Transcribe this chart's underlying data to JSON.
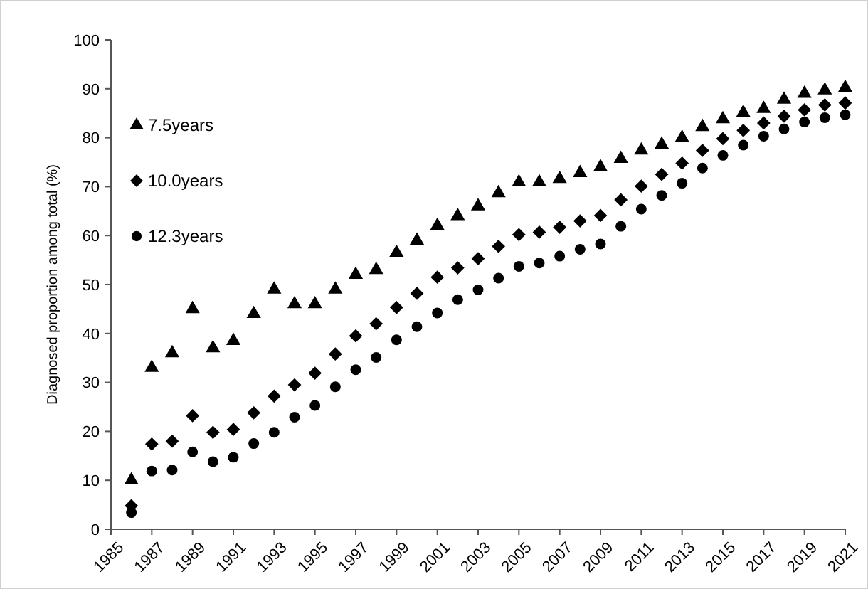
{
  "chart_data": {
    "type": "scatter",
    "ylabel": "Diagnosed proportion among total (%)",
    "x": [
      1986,
      1987,
      1988,
      1989,
      1990,
      1991,
      1992,
      1993,
      1994,
      1995,
      1996,
      1997,
      1998,
      1999,
      2000,
      2001,
      2002,
      2003,
      2004,
      2005,
      2006,
      2007,
      2008,
      2009,
      2010,
      2011,
      2012,
      2013,
      2014,
      2015,
      2016,
      2017,
      2018,
      2019,
      2020,
      2021
    ],
    "series": [
      {
        "name": "7.5years",
        "color": "#000000",
        "marker": "triangle",
        "values": [
          10,
          33,
          36,
          45,
          37,
          38.5,
          44,
          49,
          46,
          46,
          49,
          52,
          53,
          56.5,
          59,
          62,
          64,
          66,
          68.7,
          70.9,
          70.9,
          71.6,
          72.8,
          74,
          75.7,
          77.4,
          78.6,
          80,
          82.2,
          83.8,
          85.1,
          85.9,
          87.8,
          89,
          89.7,
          90.2
        ]
      },
      {
        "name": "10.0years",
        "color": "#000000",
        "marker": "diamond",
        "values": [
          4.8,
          17.4,
          18,
          23.2,
          19.8,
          20.4,
          23.8,
          27.2,
          29.5,
          31.9,
          35.8,
          39.5,
          42,
          45.3,
          48.2,
          51.5,
          53.4,
          55.3,
          57.8,
          60.2,
          60.7,
          61.7,
          63,
          64.1,
          67.3,
          70.1,
          72.5,
          74.8,
          77.4,
          79.8,
          81.5,
          83,
          84.4,
          85.7,
          86.7,
          87.1
        ]
      },
      {
        "name": "12.3years",
        "color": "#000000",
        "marker": "circle",
        "values": [
          3.4,
          11.9,
          12.1,
          15.8,
          13.8,
          14.7,
          17.5,
          19.8,
          22.9,
          25.3,
          29.1,
          32.6,
          35.1,
          38.7,
          41.4,
          44.2,
          46.9,
          48.9,
          51.3,
          53.7,
          54.4,
          55.8,
          57.2,
          58.3,
          61.9,
          65.4,
          68.2,
          70.7,
          73.8,
          76.4,
          78.5,
          80.3,
          81.8,
          83.2,
          84.1,
          84.7
        ]
      }
    ],
    "xlim": [
      1985,
      2021
    ],
    "xticks": [
      1985,
      1987,
      1989,
      1991,
      1993,
      1995,
      1997,
      1999,
      2001,
      2003,
      2005,
      2007,
      2009,
      2011,
      2013,
      2015,
      2017,
      2019,
      2021
    ],
    "ylim": [
      0,
      100
    ],
    "yticks": [
      0,
      10,
      20,
      30,
      40,
      50,
      60,
      70,
      80,
      90,
      100
    ],
    "grid": false,
    "legend": "top left"
  }
}
